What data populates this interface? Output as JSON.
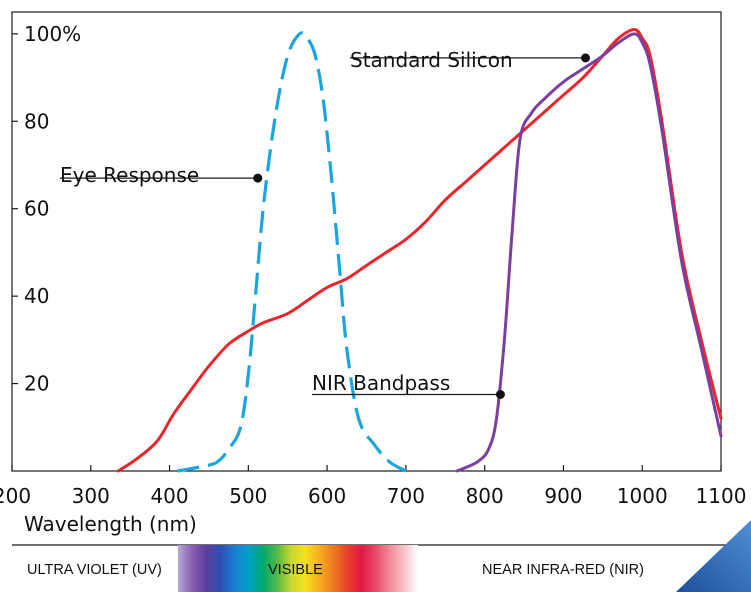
{
  "chart_data": {
    "type": "line",
    "title": "",
    "xlabel": "Wavelength (nm)",
    "ylabel": "",
    "xlim": [
      200,
      1100
    ],
    "ylim": [
      0,
      105
    ],
    "grid": false,
    "x_ticks": [
      "200",
      "300",
      "400",
      "500",
      "600",
      "700",
      "800",
      "900",
      "1000",
      "1100"
    ],
    "y_ticks": [
      "100%",
      "80",
      "60",
      "40",
      "20"
    ],
    "y_tick_values": [
      100,
      80,
      60,
      40,
      20
    ],
    "series": [
      {
        "name": "Standard Silicon",
        "color": "#e8262c",
        "style": "solid",
        "x": [
          335,
          360,
          385,
          405,
          425,
          450,
          475,
          500,
          520,
          550,
          575,
          600,
          625,
          650,
          675,
          700,
          725,
          750,
          775,
          800,
          825,
          850,
          875,
          900,
          925,
          950,
          970,
          990,
          1000,
          1010,
          1025,
          1050,
          1075,
          1100
        ],
        "y": [
          0,
          3,
          7,
          13,
          18,
          24,
          29,
          32,
          34,
          36,
          39,
          42,
          44,
          47,
          50,
          53,
          57,
          62,
          66,
          70,
          74,
          78,
          82,
          86,
          90,
          95,
          99,
          101,
          99,
          95,
          80,
          50,
          30,
          12
        ]
      },
      {
        "name": "NIR Bandpass",
        "color": "#7b3fa0",
        "style": "solid",
        "x": [
          765,
          790,
          805,
          815,
          825,
          835,
          845,
          860,
          875,
          900,
          925,
          950,
          970,
          990,
          1000,
          1010,
          1025,
          1050,
          1075,
          1100
        ],
        "y": [
          0,
          2,
          5,
          12,
          30,
          55,
          76,
          82,
          85,
          89,
          92,
          95,
          98,
          100,
          98,
          93,
          78,
          48,
          28,
          8
        ]
      },
      {
        "name": "Eye Response",
        "color": "#1aa5e0",
        "style": "dashed",
        "x": [
          410,
          440,
          460,
          475,
          490,
          500,
          510,
          520,
          535,
          550,
          565,
          575,
          585,
          595,
          605,
          615,
          625,
          640,
          660,
          680,
          700
        ],
        "y": [
          0,
          1,
          2,
          5,
          10,
          22,
          42,
          62,
          82,
          95,
          100,
          99,
          95,
          85,
          68,
          48,
          28,
          12,
          6,
          2,
          0
        ]
      }
    ],
    "annotations": [
      {
        "text": "Standard Silicon",
        "series": "Standard Silicon",
        "x": 928,
        "y": 94.5
      },
      {
        "text": "Eye Response",
        "series": "Eye Response",
        "x": 512,
        "y": 67
      },
      {
        "text": "NIR Bandpass",
        "series": "NIR Bandpass",
        "x": 820,
        "y": 17.5
      }
    ],
    "spectrum_band": {
      "uv_label": "ULTRA VIOLET (UV)",
      "visible_label": "VISIBLE",
      "nir_label": "NEAR INFRA-RED (NIR)",
      "visible_colors": [
        "#b8a8d8",
        "#8a5fb0",
        "#5a3e9e",
        "#2e4fb0",
        "#1a7fd0",
        "#00a0c8",
        "#00a870",
        "#52b847",
        "#c8d830",
        "#f5e020",
        "#f5b020",
        "#ee7a20",
        "#e8402a",
        "#e01848",
        "#ea4a6a",
        "#f28a9a",
        "#f8c0c8",
        "#ffffff"
      ]
    }
  }
}
